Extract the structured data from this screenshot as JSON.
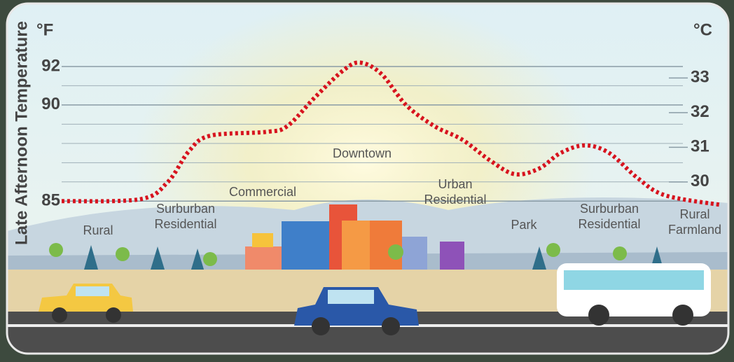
{
  "chart_data": {
    "type": "line",
    "axis_unit": "°F",
    "axis2_unit": "°C",
    "ylabel": "Late Afternoon Temperature",
    "x": [
      0,
      11.9,
      16.1,
      19.3,
      22.5,
      31,
      34.2,
      38.4,
      42.7,
      45.3,
      48.5,
      52.2,
      56.5,
      60.7,
      65,
      68.7,
      72.4,
      75.6,
      79.3,
      83,
      87.3,
      91.5,
      100
    ],
    "xlim": [
      0,
      100
    ],
    "series": [
      {
        "color": "#d7141f",
        "values": [
          85.0,
          85.1,
          86.0,
          87.6,
          88.4,
          88.6,
          88.9,
          90.4,
          91.8,
          92.2,
          91.6,
          90.0,
          88.9,
          88.2,
          87.1,
          86.4,
          86.7,
          87.5,
          87.9,
          87.5,
          86.2,
          85.3,
          84.8
        ]
      }
    ],
    "ylim": [
      84.5,
      94
    ],
    "yticks": [
      85,
      90,
      92
    ],
    "yminorticks": [
      86,
      87,
      88,
      89,
      91
    ],
    "y2lim": [
      29.17,
      34.44
    ],
    "y2ticks": [
      30,
      31,
      32,
      33
    ],
    "grid": true,
    "annotations": [
      [
        "Rural"
      ],
      [
        "Surburban",
        "Residential"
      ],
      [
        "Commercial"
      ],
      [
        "Downtown"
      ],
      [
        "Urban",
        "Residential"
      ],
      [
        "Park"
      ],
      [
        "Surburban",
        "Residential"
      ],
      [
        "Rural",
        "Farmland"
      ]
    ]
  }
}
